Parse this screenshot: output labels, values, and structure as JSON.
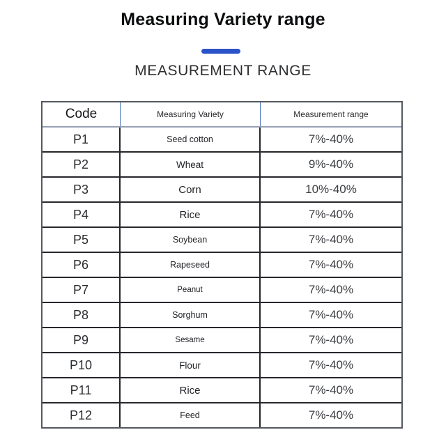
{
  "page": {
    "title": "Measuring Variety range",
    "subtitle": "MEASUREMENT RANGE",
    "accent_color": "#2b53c9"
  },
  "table": {
    "headers": [
      "Code",
      "Measuring Variety",
      "Measurement range"
    ],
    "rows": [
      {
        "code": "P1",
        "variety": "Seed cotton",
        "range": "7%-40%"
      },
      {
        "code": "P2",
        "variety": "Wheat",
        "range": "9%-40%"
      },
      {
        "code": "P3",
        "variety": "Corn",
        "range": "10%-40%"
      },
      {
        "code": "P4",
        "variety": "Rice",
        "range": "7%-40%"
      },
      {
        "code": "P5",
        "variety": "Soybean",
        "range": "7%-40%"
      },
      {
        "code": "P6",
        "variety": "Rapeseed",
        "range": "7%-40%"
      },
      {
        "code": "P7",
        "variety": "Peanut",
        "range": "7%-40%"
      },
      {
        "code": "P8",
        "variety": "Sorghum",
        "range": "7%-40%"
      },
      {
        "code": "P9",
        "variety": "Sesame",
        "range": "7%-40%"
      },
      {
        "code": "P10",
        "variety": "Flour",
        "range": "7%-40%"
      },
      {
        "code": "P11",
        "variety": "Rice",
        "range": "7%-40%"
      },
      {
        "code": "P12",
        "variety": "Feed",
        "range": "7%-40%"
      }
    ]
  }
}
